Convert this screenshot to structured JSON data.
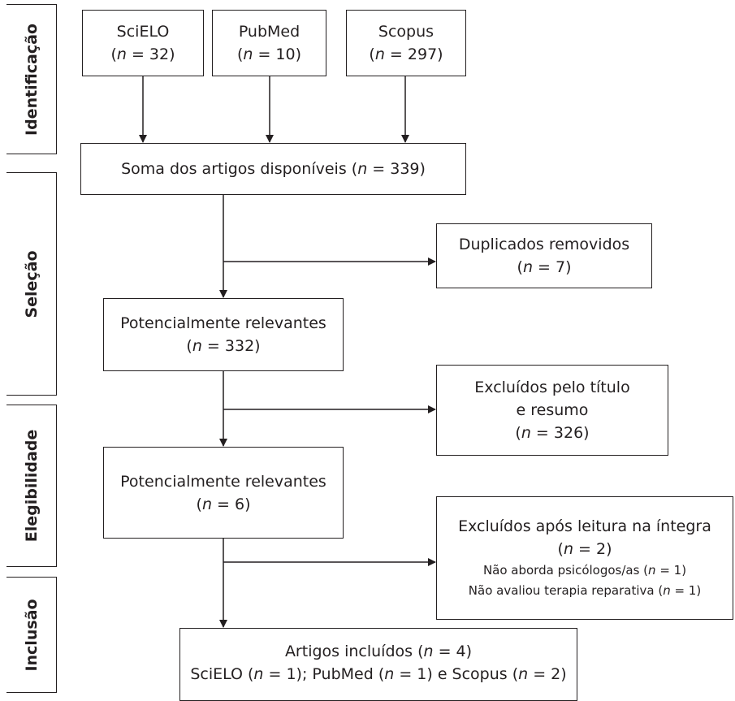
{
  "phases": {
    "identificacao": "Identificação",
    "selecao": "Seleção",
    "elegibilidade": "Elegibilidade",
    "inclusao": "Inclusão"
  },
  "n_symbol": "n",
  "sources": [
    {
      "name": "SciELO",
      "count_suffix": " = 32)"
    },
    {
      "name": "PubMed",
      "count_suffix": " = 10)"
    },
    {
      "name": "Scopus",
      "count_suffix": " = 297)"
    }
  ],
  "soma": {
    "label": "Soma dos artigos disponíveis (",
    "count_suffix": " = 339)"
  },
  "duplicados": {
    "label": "Duplicados removidos",
    "count_suffix": " = 7)"
  },
  "relevantes1": {
    "label": "Potencialmente relevantes",
    "count_suffix": " = 332)"
  },
  "excluidos_titulo": {
    "label_line1": "Excluídos pelo título",
    "label_line2": "e resumo",
    "count_suffix": " = 326)"
  },
  "relevantes2": {
    "label": "Potencialmente relevantes",
    "count_suffix": " = 6)"
  },
  "excluidos_integra": {
    "label": "Excluídos após leitura na íntegra",
    "count_suffix": " = 2)",
    "reason1": "Não aborda psicólogos/as (",
    "reason1_suffix": " = 1)",
    "reason2": "Não avaliou terapia reparativa (",
    "reason2_suffix": " = 1)"
  },
  "incluidos": {
    "label": "Artigos incluídos (",
    "count_suffix": " = 4)",
    "line2_a": "SciELO (",
    "line2_a_suffix": " = 1); PubMed (",
    "line2_b_suffix": " = 1) e Scopus (",
    "line2_c_suffix": " = 2)"
  }
}
